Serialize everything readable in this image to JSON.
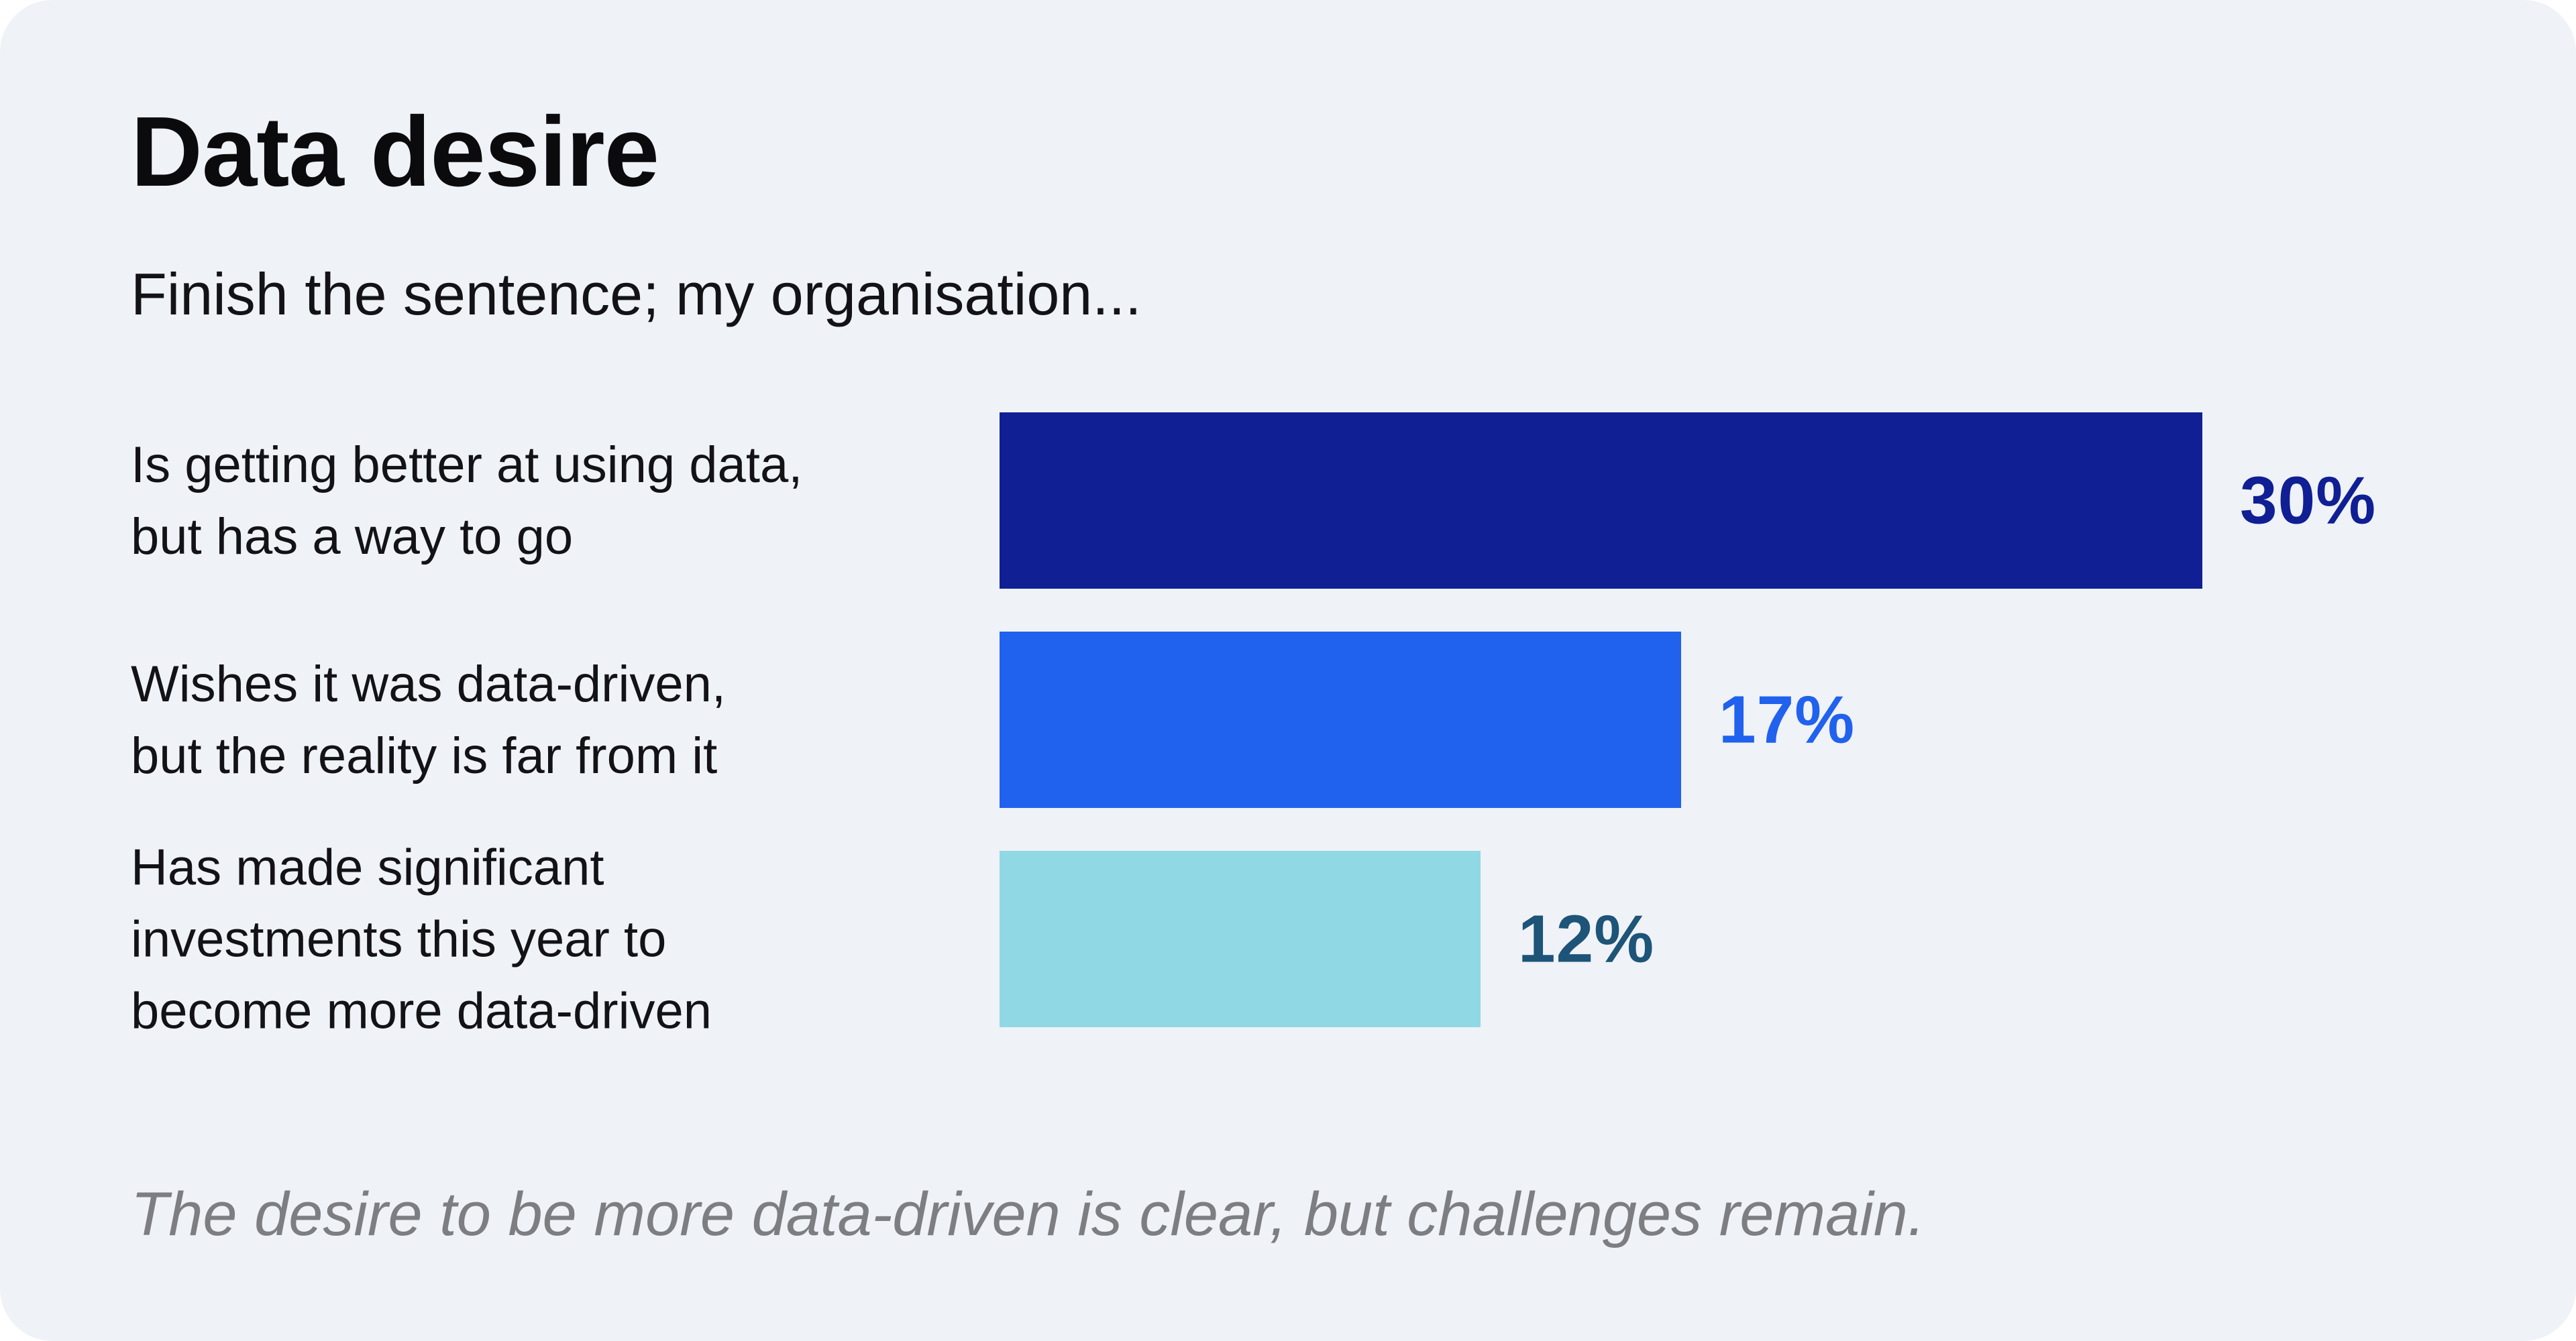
{
  "page": {
    "title": "Data desire",
    "subtitle": "Finish the sentence; my organisation...",
    "footnote": "The desire to be more data-driven is clear, but challenges remain."
  },
  "colors": {
    "canvas": "#FFFFFF",
    "card_background": "#EFF2F7",
    "navy": "#101F93",
    "bright_blue": "#2061ED",
    "light_teal": "#90D8E3",
    "teal_value_text": "#1D5477",
    "body_text": "#131317",
    "footnote_gray": "#7C7E82"
  },
  "chart_data": {
    "type": "bar",
    "orientation": "horizontal",
    "title": "Data desire",
    "subtitle": "Finish the sentence; my organisation...",
    "annotation": "The desire to be more data-driven is clear, but challenges remain.",
    "xlim": [
      0,
      30
    ],
    "grid": false,
    "axes_shown": false,
    "value_label_position": "right-of-bar-end",
    "categories": [
      "Is getting better at using data, but has a way to go",
      "Wishes it was data-driven, but the reality is far from it",
      "Has made significant investments this year to become more data-driven"
    ],
    "values": [
      30,
      17,
      12
    ],
    "bars": [
      {
        "category": "Is getting better at using data, but has a way to go",
        "label_lines": [
          "Is getting better at using data,",
          "but has a way to go"
        ],
        "value": 30,
        "value_label": "30%",
        "bar_color": "#101F93",
        "value_label_color": "#101F93"
      },
      {
        "category": "Wishes it was data-driven, but the reality is far from it",
        "label_lines": [
          "Wishes it was data-driven,",
          "but the reality is far from it"
        ],
        "value": 17,
        "value_label": "17%",
        "bar_color": "#2061ED",
        "value_label_color": "#2061ED"
      },
      {
        "category": "Has made significant investments this year to become more data-driven",
        "label_lines": [
          "Has made significant",
          "investments this year to",
          "become more data-driven"
        ],
        "value": 12,
        "value_label": "12%",
        "bar_color": "#90D8E3",
        "value_label_color": "#1D5477"
      }
    ]
  }
}
